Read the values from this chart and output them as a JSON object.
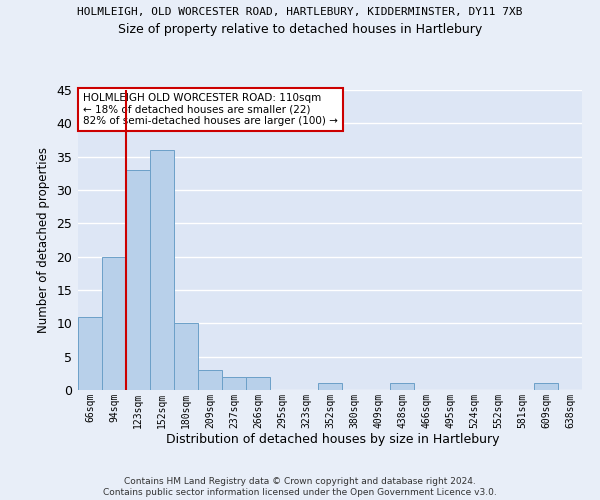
{
  "title_line1": "HOLMLEIGH, OLD WORCESTER ROAD, HARTLEBURY, KIDDERMINSTER, DY11 7XB",
  "title_line2": "Size of property relative to detached houses in Hartlebury",
  "xlabel": "Distribution of detached houses by size in Hartlebury",
  "ylabel": "Number of detached properties",
  "categories": [
    "66sqm",
    "94sqm",
    "123sqm",
    "152sqm",
    "180sqm",
    "209sqm",
    "237sqm",
    "266sqm",
    "295sqm",
    "323sqm",
    "352sqm",
    "380sqm",
    "409sqm",
    "438sqm",
    "466sqm",
    "495sqm",
    "524sqm",
    "552sqm",
    "581sqm",
    "609sqm",
    "638sqm"
  ],
  "values": [
    11,
    20,
    33,
    36,
    10,
    3,
    2,
    2,
    0,
    0,
    1,
    0,
    0,
    1,
    0,
    0,
    0,
    0,
    0,
    1,
    0
  ],
  "bar_color": "#b8d0ea",
  "bar_edge_color": "#6ca0c8",
  "vline_x": 1.5,
  "vline_color": "#cc0000",
  "ylim": [
    0,
    45
  ],
  "yticks": [
    0,
    5,
    10,
    15,
    20,
    25,
    30,
    35,
    40,
    45
  ],
  "annotation_text": "HOLMLEIGH OLD WORCESTER ROAD: 110sqm\n← 18% of detached houses are smaller (22)\n82% of semi-detached houses are larger (100) →",
  "annotation_box_color": "#ffffff",
  "annotation_box_edge": "#cc0000",
  "footnote": "Contains HM Land Registry data © Crown copyright and database right 2024.\nContains public sector information licensed under the Open Government Licence v3.0.",
  "bg_color": "#e8eef8",
  "plot_bg_color": "#dde6f5",
  "grid_color": "#ffffff",
  "title1_fontsize": 8.0,
  "title2_fontsize": 9.0,
  "ylabel_fontsize": 8.5,
  "xlabel_fontsize": 9.0,
  "ytick_fontsize": 9.0,
  "xtick_fontsize": 7.0,
  "annot_fontsize": 7.5,
  "footnote_fontsize": 6.5
}
